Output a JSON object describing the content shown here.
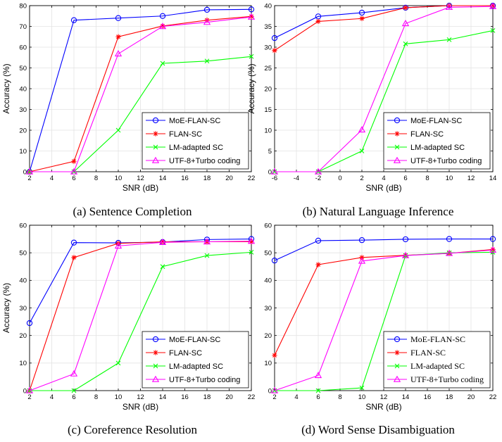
{
  "chart_data": [
    {
      "type": "line",
      "caption": "(a) Sentence Completion",
      "xlabel": "SNR (dB)",
      "ylabel": "Accuracy (%)",
      "xlim": [
        2,
        22
      ],
      "ylim": [
        0,
        80
      ],
      "xticks": [
        2,
        4,
        6,
        8,
        10,
        12,
        14,
        16,
        18,
        20,
        22
      ],
      "yticks": [
        0,
        10,
        20,
        30,
        40,
        50,
        60,
        70,
        80
      ],
      "grid": true,
      "legend_position": "bottom-right",
      "legend_font": "sans",
      "x": [
        2,
        6,
        10,
        14,
        18,
        22
      ],
      "series": [
        {
          "name": "MoE-FLAN-SC",
          "color": "#0000ff",
          "marker": "circle",
          "values": [
            0,
            73,
            74,
            75,
            78,
            78.2
          ]
        },
        {
          "name": "FLAN-SC",
          "color": "#ff0000",
          "marker": "star",
          "values": [
            0,
            5,
            65,
            70.2,
            73,
            74.8
          ]
        },
        {
          "name": "LM-adapted SC",
          "color": "#00ff00",
          "marker": "x",
          "values": [
            0,
            0,
            20,
            52.2,
            53.3,
            55.5
          ]
        },
        {
          "name": "UTF-8+Turbo coding",
          "color": "#ff00ff",
          "marker": "triangle",
          "values": [
            0,
            0,
            56.8,
            70,
            72,
            74.5
          ]
        }
      ]
    },
    {
      "type": "line",
      "caption": "(b) Natural Language Inference",
      "xlabel": "SNR (dB)",
      "ylabel": "Accuracy (%)",
      "xlim": [
        -6,
        14
      ],
      "ylim": [
        0,
        40
      ],
      "xticks": [
        -6,
        -4,
        -2,
        0,
        2,
        4,
        6,
        8,
        10,
        12,
        14
      ],
      "yticks": [
        0,
        5,
        10,
        15,
        20,
        25,
        30,
        35,
        40
      ],
      "grid": true,
      "legend_position": "bottom-right",
      "legend_font": "sans",
      "x": [
        -6,
        -2,
        2,
        6,
        10,
        14
      ],
      "series": [
        {
          "name": "MoE-FLAN-SC",
          "color": "#0000ff",
          "marker": "circle",
          "values": [
            32.2,
            37.4,
            38.3,
            39.5,
            40,
            40
          ]
        },
        {
          "name": "FLAN-SC",
          "color": "#ff0000",
          "marker": "star",
          "values": [
            29.2,
            36.2,
            36.9,
            39.5,
            40,
            40
          ]
        },
        {
          "name": "LM-adapted SC",
          "color": "#00ff00",
          "marker": "x",
          "values": [
            0,
            0,
            5,
            30.8,
            31.8,
            34
          ]
        },
        {
          "name": "UTF-8+Turbo coding",
          "color": "#ff00ff",
          "marker": "triangle",
          "values": [
            0,
            0,
            10.1,
            35.7,
            39.6,
            39.8
          ]
        }
      ]
    },
    {
      "type": "line",
      "caption": "(c) Coreference Resolution",
      "xlabel": "SNR (dB)",
      "ylabel": "Accuracy (%)",
      "xlim": [
        2,
        22
      ],
      "ylim": [
        0,
        60
      ],
      "xticks": [
        2,
        4,
        6,
        8,
        10,
        12,
        14,
        16,
        18,
        20,
        22
      ],
      "yticks": [
        0,
        10,
        20,
        30,
        40,
        50,
        60
      ],
      "grid": true,
      "legend_position": "bottom-right",
      "legend_font": "sans",
      "x": [
        2,
        6,
        10,
        14,
        18,
        22
      ],
      "series": [
        {
          "name": "MoE-FLAN-SC",
          "color": "#0000ff",
          "marker": "circle",
          "values": [
            24.5,
            53.7,
            53.6,
            53.9,
            54.8,
            55
          ]
        },
        {
          "name": "FLAN-SC",
          "color": "#ff0000",
          "marker": "star",
          "values": [
            0,
            48.3,
            53.4,
            54,
            54,
            54
          ]
        },
        {
          "name": "LM-adapted SC",
          "color": "#00ff00",
          "marker": "x",
          "values": [
            0,
            0,
            10,
            45,
            49,
            50.2
          ]
        },
        {
          "name": "UTF-8+Turbo coding",
          "color": "#ff00ff",
          "marker": "triangle",
          "values": [
            0,
            6.1,
            52.5,
            53.8,
            54,
            54.2
          ]
        }
      ]
    },
    {
      "type": "line",
      "caption": "(d) Word Sense Disambiguation",
      "xlabel": "SNR (dB)",
      "ylabel": "",
      "xlim": [
        2,
        22
      ],
      "ylim": [
        0,
        60
      ],
      "xticks": [
        2,
        4,
        6,
        8,
        10,
        12,
        14,
        16,
        18,
        20,
        22
      ],
      "yticks": [
        0,
        10,
        20,
        30,
        40,
        50,
        60
      ],
      "grid": true,
      "legend_position": "bottom-right",
      "legend_font": "serif",
      "x": [
        2,
        6,
        10,
        14,
        18,
        22
      ],
      "series": [
        {
          "name": "MoE-FLAN-SC",
          "color": "#0000ff",
          "marker": "circle",
          "values": [
            47.2,
            54.4,
            54.6,
            54.9,
            55,
            55
          ]
        },
        {
          "name": "FLAN-SC",
          "color": "#ff0000",
          "marker": "star",
          "values": [
            12.8,
            45.7,
            48.3,
            49.1,
            49.8,
            51.2
          ]
        },
        {
          "name": "LM-adapted SC",
          "color": "#00ff00",
          "marker": "x",
          "values": [
            0,
            0,
            1,
            49,
            50,
            50.2
          ]
        },
        {
          "name": "UTF-8+Turbo coding",
          "color": "#ff00ff",
          "marker": "triangle",
          "values": [
            0,
            5.5,
            47,
            49,
            49.8,
            51
          ]
        }
      ]
    }
  ]
}
